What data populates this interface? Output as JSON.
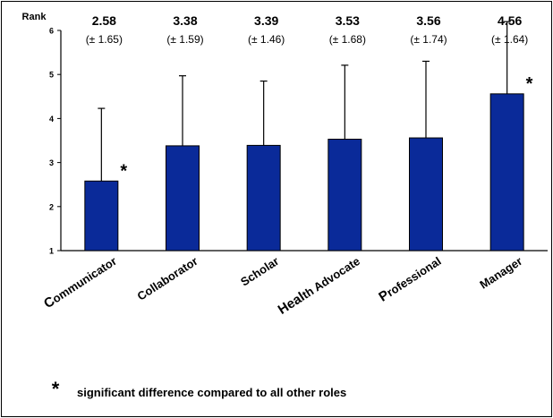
{
  "chart_data": {
    "type": "bar",
    "ylabel": "Rank",
    "ylim": [
      1,
      6
    ],
    "yticks": [
      1,
      2,
      3,
      4,
      5,
      6
    ],
    "grid": false,
    "legend": "none",
    "bar_color": "#0a2a99",
    "categories": [
      {
        "label_bold": "C",
        "label_rest": "ommunicator"
      },
      {
        "label_bold": "",
        "label_rest": "Collaborator"
      },
      {
        "label_bold": "",
        "label_rest": "Scholar"
      },
      {
        "label_bold": "Heal",
        "label_rest": "th Advocate"
      },
      {
        "label_bold": "P",
        "label_rest": "rofessional"
      },
      {
        "label_bold": "",
        "label_rest": "Manager"
      }
    ],
    "values": [
      2.58,
      3.38,
      3.39,
      3.53,
      3.56,
      4.56
    ],
    "errors": [
      1.65,
      1.59,
      1.46,
      1.68,
      1.74,
      1.64
    ],
    "value_labels": [
      "2.58",
      "3.38",
      "3.39",
      "3.53",
      "3.56",
      "4.56"
    ],
    "error_labels": [
      "(± 1.65)",
      "(± 1.59)",
      "(± 1.46)",
      "(± 1.68)",
      "(± 1.74)",
      "(± 1.64)"
    ],
    "significant": [
      true,
      false,
      false,
      false,
      false,
      true
    ],
    "significance_marker": "*",
    "footnote": {
      "marker": "*",
      "text": "significant difference compared to all other roles"
    }
  }
}
